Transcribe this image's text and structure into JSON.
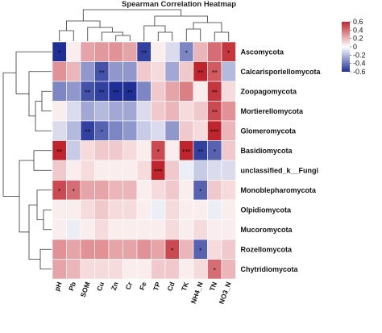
{
  "chart_data": {
    "type": "heatmap",
    "title": "Spearman Correlation Heatmap",
    "x": [
      "pH",
      "Pb",
      "SOM",
      "Cu",
      "Zn",
      "Cr",
      "Fe",
      "TP",
      "Cd",
      "TK",
      "NH4_N",
      "TN",
      "NO3_N"
    ],
    "y": [
      "Ascomycota",
      "Calcarisporiellomycota",
      "Zoopagomycota",
      "Mortierellomycota",
      "Glomeromycota",
      "Basidiomycota",
      "unclassified_k__Fungi",
      "Monoblepharomycota",
      "Olpidiomycota",
      "Mucoromycota",
      "Rozellomycota",
      "Chytridiomycota"
    ],
    "values": [
      [
        -0.6,
        0.05,
        0.25,
        0.28,
        0.3,
        0.25,
        -0.55,
        0.05,
        -0.1,
        -0.35,
        0.2,
        0.4,
        0.55
      ],
      [
        0.3,
        0.2,
        -0.3,
        -0.5,
        -0.3,
        -0.3,
        0.15,
        0.1,
        -0.25,
        0.15,
        0.6,
        0.45,
        -0.2
      ],
      [
        -0.35,
        -0.3,
        -0.5,
        -0.55,
        -0.6,
        -0.6,
        -0.35,
        0.15,
        0.25,
        0.35,
        0.05,
        0.55,
        0.1
      ],
      [
        0.05,
        -0.1,
        -0.25,
        -0.2,
        -0.25,
        -0.25,
        -0.1,
        0.15,
        0.2,
        0.1,
        0.15,
        0.5,
        0.3
      ],
      [
        -0.1,
        -0.2,
        -0.55,
        -0.45,
        -0.35,
        -0.3,
        -0.15,
        -0.1,
        -0.3,
        0.15,
        0.1,
        0.6,
        0.2
      ],
      [
        0.6,
        -0.15,
        0.1,
        0.15,
        0.15,
        0.1,
        0.05,
        0.5,
        0.05,
        0.6,
        -0.55,
        -0.45,
        0.15
      ],
      [
        0.15,
        0.05,
        0.1,
        0.05,
        0.05,
        0.05,
        0.1,
        0.6,
        0.15,
        -0.05,
        -0.15,
        -0.1,
        -0.1
      ],
      [
        0.5,
        0.4,
        0.25,
        0.25,
        0.2,
        0.2,
        0.05,
        0.1,
        0.15,
        0.05,
        -0.45,
        0.15,
        0.1
      ],
      [
        0.05,
        0.05,
        0.1,
        0.15,
        0.1,
        0.1,
        0.05,
        -0.05,
        0.1,
        0.05,
        0.05,
        -0.05,
        0.05
      ],
      [
        0.05,
        -0.05,
        0.05,
        0.1,
        0.05,
        0.05,
        0.05,
        0.05,
        0.1,
        0.05,
        0.1,
        0.05,
        0.05
      ],
      [
        0.3,
        0.25,
        0.3,
        0.3,
        0.25,
        0.25,
        0.3,
        0.25,
        0.5,
        0.2,
        -0.45,
        0.1,
        0.15
      ],
      [
        0.25,
        0.2,
        0.1,
        0.1,
        0.1,
        0.05,
        0.05,
        0.15,
        0.15,
        0.05,
        0.1,
        0.4,
        0.2
      ]
    ],
    "significance": [
      [
        "*",
        "",
        "",
        "",
        "",
        "",
        "**",
        "",
        "",
        "*",
        "",
        "",
        "*"
      ],
      [
        "",
        "",
        "",
        "**",
        "",
        "",
        "",
        "",
        "",
        "",
        "**",
        "**",
        ""
      ],
      [
        "",
        "",
        "**",
        "**",
        "**",
        "**",
        "",
        "",
        "",
        "",
        "",
        "**",
        ""
      ],
      [
        "",
        "",
        "",
        "",
        "",
        "",
        "",
        "",
        "",
        "",
        "",
        "**",
        ""
      ],
      [
        "",
        "",
        "**",
        "*",
        "",
        "",
        "",
        "",
        "",
        "",
        "",
        "***",
        ""
      ],
      [
        "**",
        "",
        "",
        "",
        "",
        "",
        "",
        "*",
        "",
        "***",
        "**",
        "*",
        ""
      ],
      [
        "",
        "",
        "",
        "",
        "",
        "",
        "",
        "***",
        "",
        "",
        "",
        "",
        ""
      ],
      [
        "*",
        "*",
        "",
        "",
        "",
        "",
        "",
        "",
        "",
        "",
        "*",
        "",
        ""
      ],
      [
        "",
        "",
        "",
        "",
        "",
        "",
        "",
        "",
        "",
        "",
        "",
        "",
        ""
      ],
      [
        "",
        "",
        "",
        "",
        "",
        "",
        "",
        "",
        "",
        "",
        "",
        "",
        ""
      ],
      [
        "",
        "",
        "",
        "",
        "",
        "",
        "",
        "",
        "*",
        "",
        "*",
        "",
        ""
      ],
      [
        "",
        "",
        "",
        "",
        "",
        "",
        "",
        "",
        "",
        "",
        "",
        "*",
        ""
      ]
    ],
    "colorbar": {
      "ticks": [
        0.6,
        0.4,
        0.2,
        0,
        -0.2,
        -0.4,
        -0.6
      ],
      "tick_labels": [
        "0.6",
        "0.4",
        "0.2",
        "0",
        "-0.2",
        "-0.4",
        "-0.6"
      ],
      "range": [
        -0.6,
        0.6
      ],
      "colors": {
        "low": "#1f2f96",
        "mid": "#ffffff",
        "high": "#c0252e"
      }
    },
    "grid": true,
    "legend": "colorbar right",
    "dendrogram_rows": true,
    "dendrogram_cols": true
  }
}
